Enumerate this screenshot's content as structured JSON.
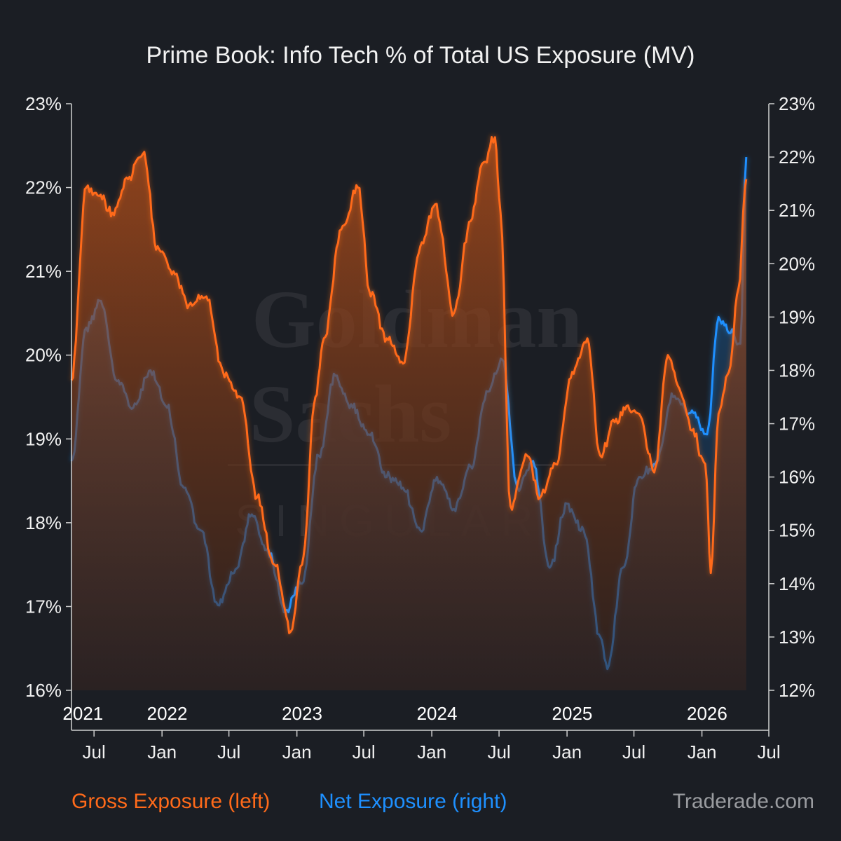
{
  "chart_data": {
    "type": "line",
    "title": "Prime Book: Info Tech % of Total US Exposure (MV)",
    "x_start": "2021-05-01",
    "x_end": "2026-07-01",
    "x_month_ticks": [
      "Jul",
      "Jan",
      "Jul",
      "Jan",
      "Jul",
      "Jan",
      "Jul",
      "Jan",
      "Jul",
      "Jan",
      "Jul"
    ],
    "x_month_tick_dates": [
      "2021-07-01",
      "2022-01-01",
      "2022-07-01",
      "2023-01-01",
      "2023-07-01",
      "2024-01-01",
      "2024-07-01",
      "2025-01-01",
      "2025-07-01",
      "2026-01-01",
      "2026-07-01"
    ],
    "year_labels": [
      "2021",
      "2022",
      "2023",
      "2024",
      "2025",
      "2026"
    ],
    "year_label_dates": [
      "2021-06-01",
      "2022-01-15",
      "2023-01-15",
      "2024-01-15",
      "2025-01-15",
      "2026-01-15"
    ],
    "left_axis": {
      "ylim": [
        16,
        23
      ],
      "ticks": [
        "16%",
        "17%",
        "18%",
        "19%",
        "20%",
        "21%",
        "22%",
        "23%"
      ]
    },
    "right_axis": {
      "ylim": [
        12,
        23
      ],
      "ticks": [
        "12%",
        "13%",
        "14%",
        "15%",
        "16%",
        "17%",
        "18%",
        "19%",
        "20%",
        "21%",
        "22%",
        "23%"
      ]
    },
    "grid": false,
    "legend_position": "bottom-left",
    "series": [
      {
        "name": "Gross Exposure (left)",
        "axis": "left",
        "color": "#ff6a1a",
        "x": [
          "2021-05-01",
          "2021-06-10",
          "2021-07-15",
          "2021-08-20",
          "2021-10-01",
          "2021-11-10",
          "2021-12-20",
          "2022-02-01",
          "2022-03-15",
          "2022-05-01",
          "2022-06-15",
          "2022-08-01",
          "2022-09-15",
          "2022-11-01",
          "2022-12-15",
          "2023-01-15",
          "2023-02-20",
          "2023-03-15",
          "2023-05-01",
          "2023-06-15",
          "2023-07-20",
          "2023-09-01",
          "2023-10-15",
          "2023-12-01",
          "2024-01-10",
          "2024-03-01",
          "2024-04-15",
          "2024-05-20",
          "2024-06-20",
          "2024-07-05",
          "2024-08-01",
          "2024-09-15",
          "2024-10-20",
          "2024-12-01",
          "2025-01-15",
          "2025-02-25",
          "2025-04-01",
          "2025-05-10",
          "2025-06-15",
          "2025-07-15",
          "2025-08-25",
          "2025-10-01",
          "2025-11-01",
          "2025-12-05",
          "2026-01-10",
          "2026-01-25",
          "2026-02-15",
          "2026-03-15",
          "2026-04-10",
          "2026-05-01"
        ],
        "values": [
          19.7,
          22.0,
          21.9,
          21.7,
          22.1,
          22.4,
          21.3,
          21.0,
          20.6,
          20.7,
          19.8,
          19.5,
          18.3,
          17.5,
          16.7,
          17.5,
          19.5,
          20.2,
          21.5,
          22.0,
          20.7,
          20.2,
          19.9,
          21.3,
          21.8,
          20.5,
          21.6,
          22.3,
          22.6,
          21.7,
          18.2,
          18.8,
          18.3,
          18.7,
          19.8,
          20.2,
          18.8,
          19.2,
          19.4,
          19.3,
          18.6,
          20.0,
          19.6,
          19.1,
          18.7,
          17.4,
          19.3,
          19.8,
          20.8,
          22.1
        ]
      },
      {
        "name": "Net Exposure (right)",
        "axis": "right",
        "color": "#1e90ff",
        "x": [
          "2021-05-01",
          "2021-06-10",
          "2021-07-20",
          "2021-09-01",
          "2021-10-15",
          "2021-12-01",
          "2022-01-15",
          "2022-03-01",
          "2022-04-15",
          "2022-06-01",
          "2022-07-15",
          "2022-09-01",
          "2022-10-15",
          "2022-12-01",
          "2023-01-15",
          "2023-03-01",
          "2023-04-15",
          "2023-06-01",
          "2023-07-15",
          "2023-09-01",
          "2023-10-15",
          "2023-12-01",
          "2024-01-15",
          "2024-03-01",
          "2024-04-15",
          "2024-06-01",
          "2024-07-10",
          "2024-08-20",
          "2024-10-01",
          "2024-11-15",
          "2025-01-01",
          "2025-02-15",
          "2025-04-01",
          "2025-04-20",
          "2025-06-01",
          "2025-07-15",
          "2025-09-01",
          "2025-10-15",
          "2025-12-01",
          "2026-01-15",
          "2026-02-15",
          "2026-03-15",
          "2026-04-15",
          "2026-05-01"
        ],
        "values": [
          16.3,
          18.8,
          19.3,
          17.8,
          17.3,
          18.0,
          17.3,
          15.8,
          15.0,
          13.6,
          14.2,
          15.3,
          14.6,
          13.5,
          14.0,
          16.4,
          17.9,
          17.3,
          16.8,
          16.0,
          15.8,
          15.0,
          16.0,
          15.4,
          16.2,
          17.6,
          18.2,
          15.8,
          16.3,
          14.3,
          15.5,
          15.0,
          13.0,
          12.4,
          14.3,
          16.0,
          16.3,
          17.5,
          17.2,
          16.8,
          19.0,
          18.7,
          18.5,
          22.0
        ]
      }
    ]
  },
  "watermark": {
    "line1": "Goldman",
    "line2": "Sachs",
    "line3": "SINGULAR"
  },
  "legend": {
    "gross_label": "Gross Exposure (left)",
    "net_label": "Net Exposure (right)"
  },
  "credit": "Traderade.com",
  "colors": {
    "background": "#1b1e24",
    "gross": "#ff6a1a",
    "net": "#1e90ff",
    "axis": "#d0d0d0",
    "credit": "#9a9ca0"
  }
}
